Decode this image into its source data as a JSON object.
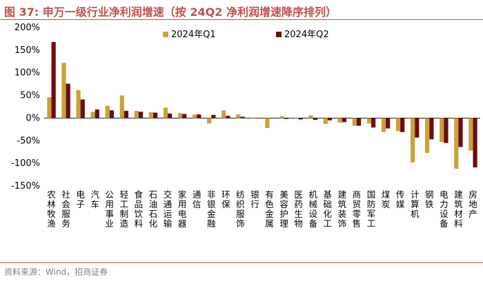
{
  "title": "图 37:  申万一级行业净利润增速（按 24Q2 净利润增速降序排列）",
  "source": "资料来源：Wind，招商证券",
  "colors": {
    "title": "#c0504d",
    "q1": "#c9a23a",
    "q2": "#6b0d12",
    "axis": "#000000"
  },
  "chart_data": {
    "type": "bar",
    "title": "",
    "xlabel": "",
    "ylabel": "",
    "ylim": [
      -150,
      200
    ],
    "yticks": [
      -150,
      -100,
      -50,
      0,
      50,
      100,
      150,
      200
    ],
    "ytick_labels": [
      "-150%",
      "-100%",
      "-50%",
      "0%",
      "50%",
      "100%",
      "150%",
      "200%"
    ],
    "legend_position": "top-center",
    "categories": [
      "农林牧渔",
      "社会服务",
      "电子",
      "汽车",
      "公用事业",
      "轻工制造",
      "食品饮料",
      "石油石化",
      "交通运输",
      "家用电器",
      "通信",
      "非银金融",
      "环保",
      "纺织服饰",
      "银行",
      "有色金属",
      "美容护理",
      "医药生物",
      "机械设备",
      "基础化工",
      "建筑装饰",
      "商贸零售",
      "国防军工",
      "煤炭",
      "传媒",
      "计算机",
      "钢铁",
      "电力设备",
      "建筑材料",
      "房地产"
    ],
    "series": [
      {
        "name": "2024年Q1",
        "values": [
          46,
          122,
          62,
          14,
          27,
          50,
          16,
          13,
          23,
          11,
          8,
          -12,
          17,
          8,
          1,
          -22,
          4,
          -1,
          6,
          -13,
          -10,
          -17,
          -12,
          -31,
          -29,
          -98,
          -77,
          -53,
          -112,
          -72
        ]
      },
      {
        "name": "2024年Q2",
        "values": [
          168,
          76,
          41,
          19,
          17,
          16,
          14,
          12,
          10,
          9,
          8,
          7,
          5,
          3,
          0,
          -1,
          -2,
          -3,
          -4,
          -5,
          -9,
          -17,
          -21,
          -23,
          -31,
          -43,
          -47,
          -55,
          -64,
          -109
        ]
      }
    ]
  }
}
